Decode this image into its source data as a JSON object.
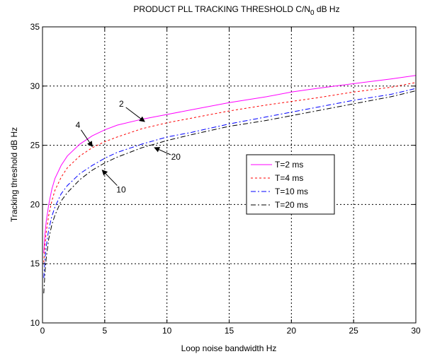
{
  "chart_data": {
    "type": "line",
    "title": "PRODUCT PLL TRACKING THRESHOLD C/N",
    "title_subscript": "0",
    "title_suffix": " dB Hz",
    "xlabel": "Loop noise bandwidth Hz",
    "ylabel": "Tracking threshold dB Hz",
    "xlim": [
      0,
      30
    ],
    "ylim": [
      10,
      35
    ],
    "xticks": [
      "0",
      "5",
      "10",
      "15",
      "20",
      "25",
      "30"
    ],
    "yticks": [
      "10",
      "15",
      "20",
      "25",
      "30",
      "35"
    ],
    "grid": true,
    "legend_position": "center-right",
    "x": [
      0.1,
      0.2,
      0.3,
      0.5,
      0.75,
      1,
      1.5,
      2,
      3,
      4,
      5,
      6,
      8,
      10,
      12,
      15,
      18,
      20,
      22,
      25,
      28,
      30
    ],
    "series": [
      {
        "name": "T=2 ms",
        "color": "#ff00ff",
        "dash": "solid",
        "values": [
          15.9,
          17.5,
          18.6,
          20.0,
          21.3,
          22.2,
          23.3,
          24.1,
          25.1,
          25.8,
          26.3,
          26.7,
          27.2,
          27.6,
          28.0,
          28.6,
          29.1,
          29.5,
          29.8,
          30.2,
          30.6,
          30.9
        ]
      },
      {
        "name": "T=4 ms",
        "color": "#ff0000",
        "dash": "dotted",
        "values": [
          15.1,
          16.6,
          17.7,
          19.1,
          20.3,
          21.2,
          22.3,
          23.1,
          24.1,
          24.8,
          25.3,
          25.7,
          26.4,
          26.9,
          27.3,
          27.9,
          28.4,
          28.7,
          29.0,
          29.5,
          29.9,
          30.3
        ]
      },
      {
        "name": "T=10 ms",
        "color": "#0000ff",
        "dash": "dashdot",
        "values": [
          13.8,
          15.4,
          16.5,
          17.9,
          19.0,
          19.8,
          20.9,
          21.6,
          22.6,
          23.3,
          23.9,
          24.4,
          25.1,
          25.7,
          26.1,
          26.8,
          27.4,
          27.8,
          28.2,
          28.8,
          29.3,
          29.8
        ]
      },
      {
        "name": "T=20 ms",
        "color": "#000000",
        "dash": "dashdot",
        "values": [
          12.5,
          14.3,
          15.5,
          17.1,
          18.3,
          19.1,
          20.3,
          21.0,
          22.1,
          22.9,
          23.5,
          24.0,
          24.8,
          25.4,
          25.9,
          26.6,
          27.1,
          27.5,
          27.9,
          28.5,
          29.1,
          29.6
        ]
      }
    ],
    "annotations": [
      {
        "text": "2",
        "arrow_from": [
          6.7,
          28.2
        ],
        "arrow_to": [
          8.2,
          27.0
        ]
      },
      {
        "text": "4",
        "arrow_from": [
          3.1,
          26.3
        ],
        "arrow_to": [
          4.0,
          24.9
        ]
      },
      {
        "text": "10",
        "arrow_from": [
          6.0,
          21.6
        ],
        "arrow_to": [
          4.8,
          22.9
        ]
      },
      {
        "text": "20",
        "arrow_from": [
          10.3,
          24.2
        ],
        "arrow_to": [
          9.0,
          24.8
        ]
      }
    ]
  }
}
